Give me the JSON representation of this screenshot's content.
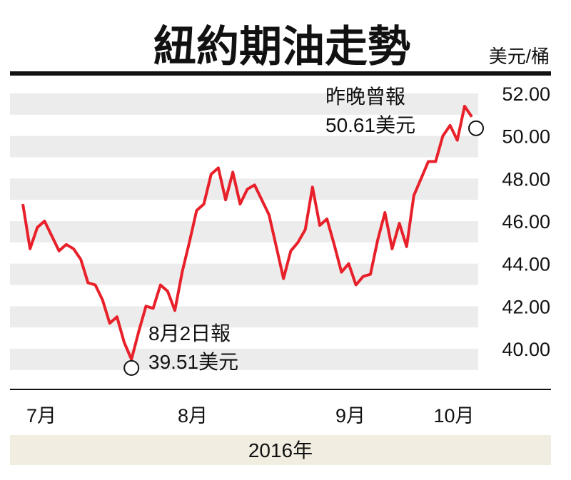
{
  "chart_data": {
    "type": "line",
    "title": "紐約期油走勢",
    "ylabel": "美元/桶",
    "xlabel": "2016年",
    "ylim": [
      38,
      53
    ],
    "yticks": [
      "40.00",
      "42.00",
      "44.00",
      "46.00",
      "48.00",
      "50.00",
      "52.00"
    ],
    "months": [
      "7月",
      "8月",
      "9月",
      "10月"
    ],
    "series": [
      {
        "color": "#e8202a",
        "values": [
          46.8,
          44.7,
          45.7,
          46.0,
          45.3,
          44.6,
          44.9,
          44.7,
          44.2,
          43.1,
          43.0,
          42.3,
          41.2,
          41.5,
          40.3,
          39.5,
          40.8,
          42.0,
          41.9,
          43.0,
          42.7,
          41.8,
          43.6,
          45.0,
          46.5,
          46.8,
          48.2,
          48.5,
          47.0,
          48.3,
          46.8,
          47.5,
          47.7,
          47.0,
          46.3,
          44.8,
          43.3,
          44.6,
          45.0,
          45.6,
          47.6,
          45.8,
          46.1,
          44.9,
          43.6,
          44.0,
          43.0,
          43.4,
          43.5,
          45.1,
          46.4,
          44.7,
          45.9,
          44.8,
          47.2,
          48.0,
          48.8,
          48.8,
          50.0,
          50.5,
          49.8,
          51.4,
          50.9
        ]
      }
    ],
    "annotations": {
      "low": {
        "line1": "8月2日報",
        "line2": "39.51美元"
      },
      "high": {
        "line1": "昨晚曾報",
        "line2": "50.61美元"
      }
    },
    "grid": "alternating horizontal bands",
    "band_color": "#ececec",
    "footer_color": "#f1ede1"
  }
}
